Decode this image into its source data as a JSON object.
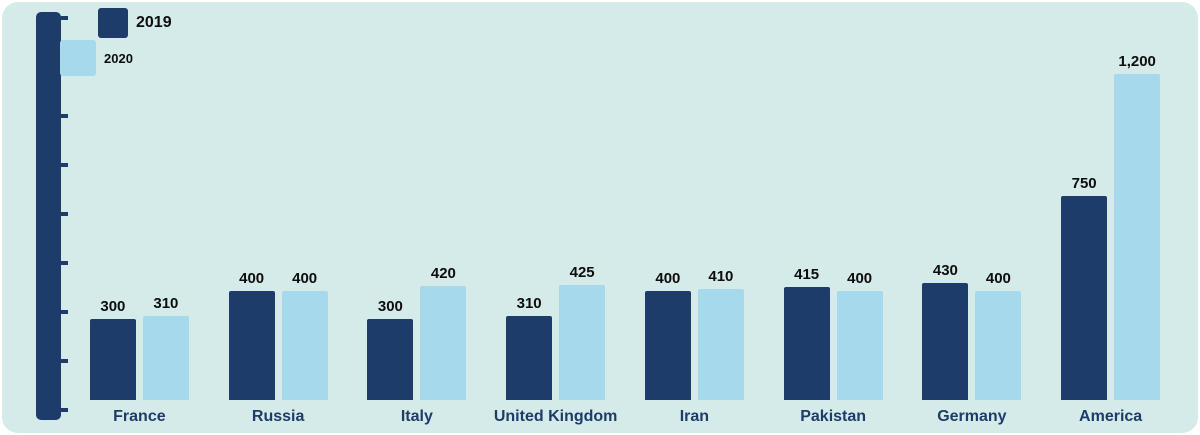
{
  "colors": {
    "background": "#d5ebe9",
    "axis": "#1d3c69",
    "series_dark": "#1d3c69",
    "series_light": "#a7d9ec",
    "value_text": "#0d0d0d",
    "category_text": "#1d3c69"
  },
  "chart_data": {
    "type": "bar",
    "title": "",
    "xlabel": "",
    "ylabel": "",
    "categories": [
      "France",
      "Russia",
      "Italy",
      "United Kingdom",
      "Iran",
      "Pakistan",
      "Germany",
      "America"
    ],
    "series": [
      {
        "name": "2019",
        "color": "#1d3c69",
        "values": [
          300,
          400,
          300,
          310,
          400,
          415,
          430,
          750
        ],
        "labels": [
          "300",
          "400",
          "300",
          "310",
          "400",
          "415",
          "430",
          "750"
        ]
      },
      {
        "name": "2020",
        "color": "#a7d9ec",
        "values": [
          310,
          400,
          420,
          425,
          410,
          400,
          400,
          1200
        ],
        "labels": [
          "310",
          "400",
          "420",
          "425",
          "410",
          "400",
          "400",
          "1,200"
        ]
      }
    ],
    "ylim": [
      0,
      1400
    ],
    "grid": false,
    "legend_position": "top-left"
  }
}
